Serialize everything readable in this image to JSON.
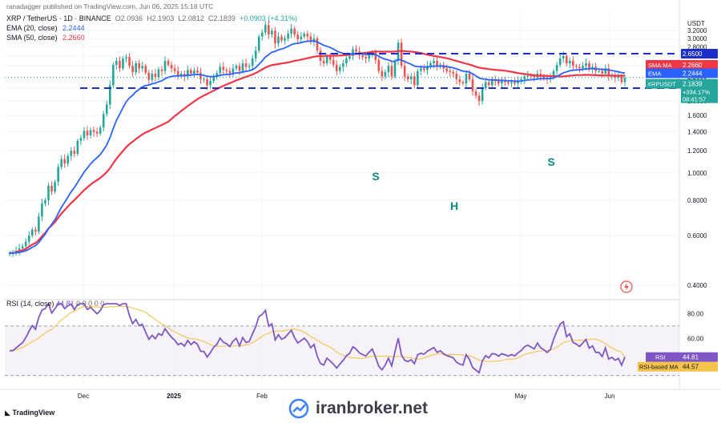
{
  "publisher": "ranadagger published on TradingView.com, Jun 06, 2025 15:18 UTC",
  "symbol": {
    "title": "XRP / TetherUS · 1D · BINANCE",
    "open": "O2.0936",
    "high": "H2.1903",
    "low": "L2.0812",
    "close": "C2.1839",
    "change": "+0.0903 (+4.31%)"
  },
  "legend": {
    "ema": {
      "label": "EMA (20, close)",
      "value": "2.2444"
    },
    "sma": {
      "label": "SMA (50, close)",
      "value": "2.2660"
    }
  },
  "rsi_header": {
    "label": "RSI (14, close)",
    "value": "44.81",
    "extra": "0 0 0 0 0"
  },
  "currency": "USDT",
  "price_labels": {
    "resistance": "2.6500",
    "support": "2.0000",
    "sma_tag": "SMA:MA",
    "sma_value": "2.2660",
    "ema_tag": "EMA",
    "ema_value": "2.2444",
    "sym_tag": "XRPUSDT",
    "sym_price": "2.1839",
    "sym_change": "+334.17%",
    "countdown": "08:41:57",
    "rsi_tag": "RSI",
    "rsi_value": "44.81",
    "rsi_ma_tag": "RSI-based MA",
    "rsi_ma_value": "44.57"
  },
  "annotations": {
    "left_shoulder": "S",
    "head": "H",
    "right_shoulder": "S"
  },
  "branding": {
    "tradingview": "TradingView",
    "watermark": "iranbroker.net"
  },
  "colors": {
    "up": "#26a69a",
    "down": "#ef5350",
    "ema": "#2962ff",
    "sma": "#f23645",
    "rsi": "#7e57c2",
    "rsi_ma": "#f5c24a",
    "level_line": "#1c2ec7",
    "hs_text": "#0d8c80"
  },
  "chart_data": [
    {
      "type": "candlestick",
      "x_ticks": [
        "Dec",
        "2025",
        "Feb",
        "May",
        "Jun"
      ],
      "y_ticks": [
        0.4,
        0.6,
        0.8,
        1.0,
        1.2,
        1.4,
        1.6,
        1.8,
        2.0,
        2.2,
        2.4,
        2.6,
        2.8,
        3.0,
        3.2
      ],
      "y_scale": "log",
      "horizontal_levels": [
        2.65,
        2.0
      ],
      "closes": [
        0.52,
        0.52,
        0.53,
        0.54,
        0.55,
        0.57,
        0.6,
        0.63,
        0.62,
        0.7,
        0.78,
        0.8,
        0.9,
        0.86,
        0.93,
        1.05,
        1.12,
        1.08,
        1.15,
        1.2,
        1.17,
        1.3,
        1.33,
        1.41,
        1.36,
        1.42,
        1.4,
        1.38,
        1.45,
        1.62,
        1.75,
        2.05,
        2.42,
        2.5,
        2.35,
        2.55,
        2.58,
        2.4,
        2.28,
        2.45,
        2.35,
        2.4,
        2.27,
        2.14,
        2.25,
        2.19,
        2.33,
        2.3,
        2.5,
        2.42,
        2.35,
        2.3,
        2.22,
        2.25,
        2.2,
        2.32,
        2.25,
        2.31,
        2.27,
        2.15,
        2.15,
        2.05,
        2.12,
        2.21,
        2.26,
        2.38,
        2.32,
        2.3,
        2.26,
        2.35,
        2.4,
        2.3,
        2.45,
        2.38,
        2.4,
        2.55,
        2.72,
        3.05,
        3.15,
        3.35,
        3.1,
        3.2,
        2.88,
        3.05,
        2.95,
        3.0,
        3.12,
        3.25,
        3.1,
        2.98,
        3.05,
        3.12,
        3.05,
        2.92,
        3.0,
        2.72,
        2.5,
        2.45,
        2.6,
        2.52,
        2.42,
        2.3,
        2.38,
        2.45,
        2.55,
        2.6,
        2.75,
        2.7,
        2.62,
        2.58,
        2.55,
        2.62,
        2.68,
        2.52,
        2.3,
        2.2,
        2.28,
        2.4,
        2.2,
        2.5,
        2.9,
        2.4,
        2.2,
        2.15,
        2.2,
        2.05,
        2.3,
        2.35,
        2.32,
        2.4,
        2.45,
        2.5,
        2.38,
        2.42,
        2.35,
        2.3,
        2.28,
        2.25,
        2.15,
        2.1,
        2.08,
        2.25,
        2.15,
        1.95,
        1.88,
        1.8,
        2.0,
        2.1,
        2.05,
        2.13,
        2.12,
        2.08,
        2.12,
        2.1,
        2.08,
        2.1,
        2.08,
        2.12,
        2.15,
        2.2,
        2.22,
        2.2,
        2.18,
        2.25,
        2.2,
        2.18,
        2.15,
        2.18,
        2.3,
        2.42,
        2.55,
        2.6,
        2.45,
        2.5,
        2.4,
        2.38,
        2.35,
        2.4,
        2.45,
        2.35,
        2.38,
        2.3,
        2.3,
        2.25,
        2.35,
        2.2,
        2.22,
        2.18,
        2.2,
        2.1,
        2.18
      ],
      "ema20_last": 2.2444,
      "sma50_last": 2.266,
      "last_price": 2.1839
    },
    {
      "type": "line",
      "title": "RSI (14, close)",
      "y_ticks": [
        60.0,
        80.0
      ],
      "bands": [
        30,
        70
      ],
      "rsi_last": 44.81,
      "rsi_ma_last": 44.57
    }
  ]
}
